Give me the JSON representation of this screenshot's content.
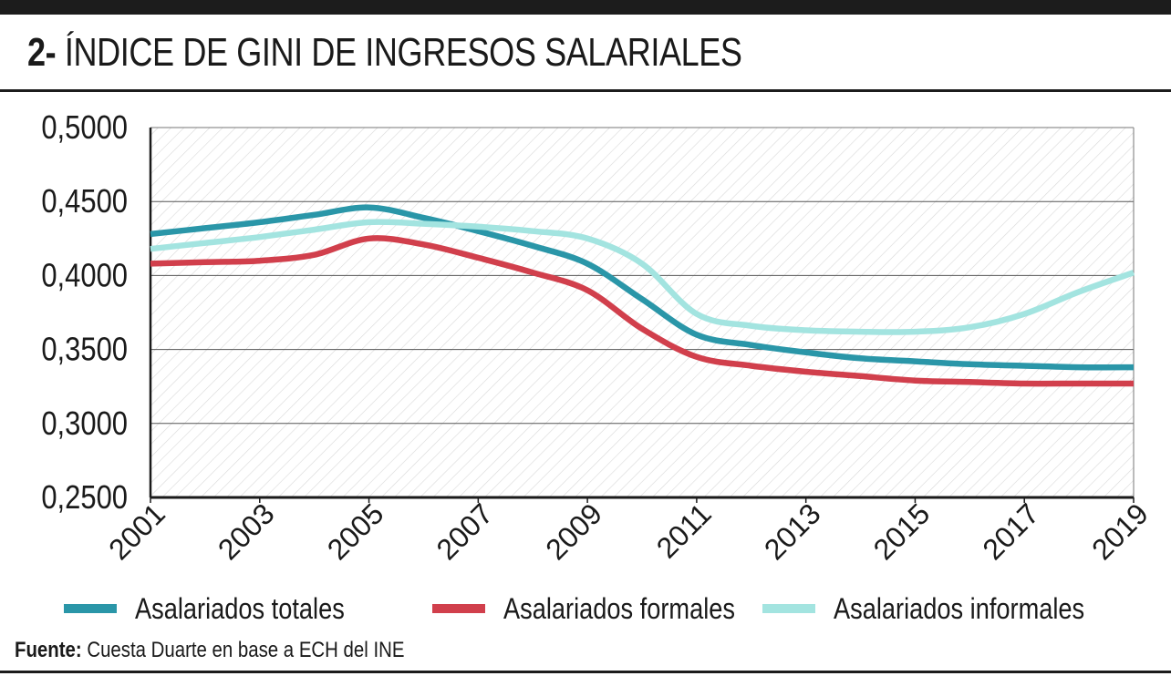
{
  "title": {
    "number": "2-",
    "text": "ÍNDICE DE GINI DE INGRESOS SALARIALES"
  },
  "source": {
    "label": "Fuente:",
    "text": "Cuesta Duarte en base a ECH del INE"
  },
  "chart_data": {
    "type": "line",
    "title": "ÍNDICE DE GINI DE INGRESOS SALARIALES",
    "xlabel": "",
    "ylabel": "",
    "x": [
      2001,
      2002,
      2003,
      2004,
      2005,
      2006,
      2007,
      2008,
      2009,
      2010,
      2011,
      2012,
      2013,
      2014,
      2015,
      2016,
      2017,
      2018,
      2019
    ],
    "x_tick_labels": [
      "2001",
      "2003",
      "2005",
      "2007",
      "2009",
      "2011",
      "2013",
      "2015",
      "2017",
      "2019"
    ],
    "y_tick_labels": [
      "0,5000",
      "0,4500",
      "0,4000",
      "0,3500",
      "0,3000",
      "0,2500"
    ],
    "ylim": [
      0.25,
      0.5
    ],
    "grid": true,
    "legend_position": "bottom",
    "series": [
      {
        "name": "Asalariados totales",
        "color": "#2a96a8",
        "values": [
          0.428,
          0.432,
          0.436,
          0.441,
          0.446,
          0.439,
          0.43,
          0.42,
          0.408,
          0.384,
          0.36,
          0.353,
          0.348,
          0.344,
          0.342,
          0.34,
          0.339,
          0.338,
          0.338
        ]
      },
      {
        "name": "Asalariados formales",
        "color": "#d13f4c",
        "values": [
          0.408,
          0.409,
          0.41,
          0.414,
          0.425,
          0.421,
          0.412,
          0.402,
          0.39,
          0.364,
          0.345,
          0.339,
          0.335,
          0.332,
          0.329,
          0.328,
          0.327,
          0.327,
          0.327
        ]
      },
      {
        "name": "Asalariados informales",
        "color": "#a3e4e0",
        "values": [
          0.418,
          0.422,
          0.426,
          0.431,
          0.436,
          0.435,
          0.433,
          0.43,
          0.425,
          0.408,
          0.374,
          0.366,
          0.363,
          0.362,
          0.362,
          0.365,
          0.374,
          0.389,
          0.402
        ]
      }
    ]
  }
}
